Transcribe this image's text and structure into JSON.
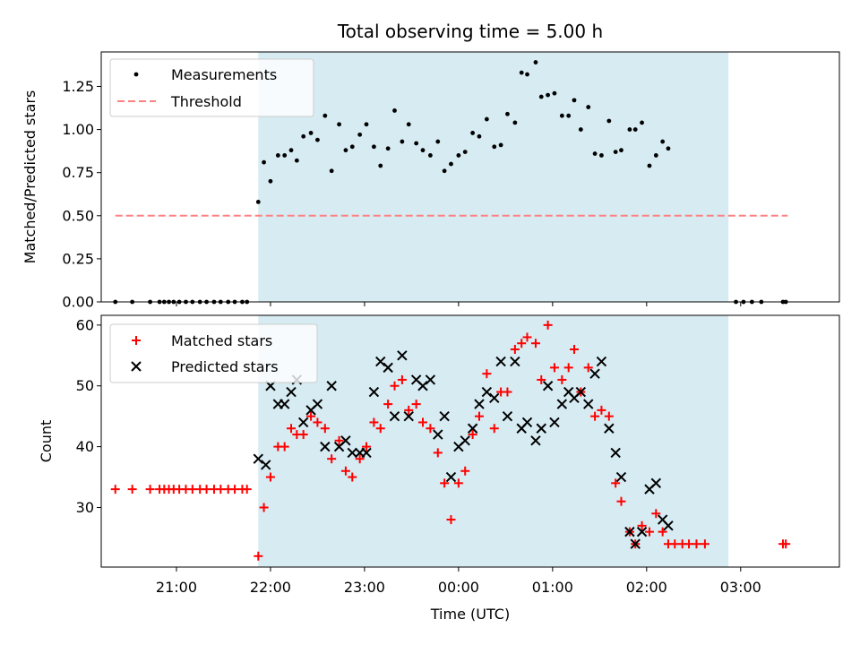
{
  "colors": {
    "shade": "#add8e6",
    "threshold": "#ff8080",
    "matched": "#ff0000",
    "predicted": "#000000",
    "measurement": "#000000"
  },
  "chart_data": [
    {
      "type": "scatter",
      "title": "Total observing time = 5.00 h",
      "xlabel": "",
      "ylabel": "Matched/Predicted stars",
      "x_unit": "UTC time (hours, values beyond 24 continue into the next day)",
      "xlim": [
        20.2,
        28.05
      ],
      "ylim": [
        0,
        1.45
      ],
      "yticks": [
        "0.00",
        "0.25",
        "0.50",
        "0.75",
        "1.00",
        "1.25"
      ],
      "observing_window": [
        21.87,
        26.87
      ],
      "legend": {
        "placement": "upper left",
        "entries": [
          "Measurements",
          "Threshold"
        ]
      },
      "series": [
        {
          "name": "Measurements",
          "marker": "dot",
          "points": [
            [
              20.35,
              0
            ],
            [
              20.53,
              0
            ],
            [
              20.72,
              0
            ],
            [
              20.82,
              0
            ],
            [
              20.87,
              0
            ],
            [
              20.92,
              0
            ],
            [
              20.97,
              0
            ],
            [
              21.03,
              0
            ],
            [
              21.1,
              0
            ],
            [
              21.17,
              0
            ],
            [
              21.25,
              0
            ],
            [
              21.32,
              0
            ],
            [
              21.4,
              0
            ],
            [
              21.47,
              0
            ],
            [
              21.55,
              0
            ],
            [
              21.62,
              0
            ],
            [
              21.7,
              0
            ],
            [
              21.75,
              0
            ],
            [
              21.87,
              0.58
            ],
            [
              21.93,
              0.81
            ],
            [
              22.0,
              0.7
            ],
            [
              22.08,
              0.85
            ],
            [
              22.15,
              0.85
            ],
            [
              22.22,
              0.88
            ],
            [
              22.28,
              0.82
            ],
            [
              22.35,
              0.96
            ],
            [
              22.43,
              0.98
            ],
            [
              22.5,
              0.94
            ],
            [
              22.58,
              1.08
            ],
            [
              22.65,
              0.76
            ],
            [
              22.73,
              1.03
            ],
            [
              22.8,
              0.88
            ],
            [
              22.87,
              0.9
            ],
            [
              22.95,
              0.97
            ],
            [
              23.02,
              1.03
            ],
            [
              23.1,
              0.9
            ],
            [
              23.17,
              0.79
            ],
            [
              23.25,
              0.89
            ],
            [
              23.32,
              1.11
            ],
            [
              23.4,
              0.93
            ],
            [
              23.47,
              1.03
            ],
            [
              23.55,
              0.92
            ],
            [
              23.62,
              0.88
            ],
            [
              23.7,
              0.85
            ],
            [
              23.78,
              0.93
            ],
            [
              23.85,
              0.76
            ],
            [
              23.92,
              0.8
            ],
            [
              24.0,
              0.85
            ],
            [
              24.07,
              0.87
            ],
            [
              24.15,
              0.98
            ],
            [
              24.22,
              0.96
            ],
            [
              24.3,
              1.06
            ],
            [
              24.38,
              0.9
            ],
            [
              24.45,
              0.91
            ],
            [
              24.52,
              1.09
            ],
            [
              24.6,
              1.04
            ],
            [
              24.67,
              1.33
            ],
            [
              24.73,
              1.32
            ],
            [
              24.82,
              1.39
            ],
            [
              24.88,
              1.19
            ],
            [
              24.95,
              1.2
            ],
            [
              25.02,
              1.21
            ],
            [
              25.1,
              1.08
            ],
            [
              25.17,
              1.08
            ],
            [
              25.23,
              1.17
            ],
            [
              25.3,
              1.0
            ],
            [
              25.38,
              1.13
            ],
            [
              25.45,
              0.86
            ],
            [
              25.52,
              0.85
            ],
            [
              25.6,
              1.05
            ],
            [
              25.67,
              0.87
            ],
            [
              25.73,
              0.88
            ],
            [
              25.82,
              1.0
            ],
            [
              25.88,
              1.0
            ],
            [
              25.95,
              1.04
            ],
            [
              26.03,
              0.79
            ],
            [
              26.1,
              0.85
            ],
            [
              26.17,
              0.93
            ],
            [
              26.23,
              0.89
            ],
            [
              26.95,
              0
            ],
            [
              27.03,
              0
            ],
            [
              27.12,
              0
            ],
            [
              27.22,
              0
            ],
            [
              27.45,
              0
            ],
            [
              27.48,
              0
            ]
          ]
        },
        {
          "name": "Threshold",
          "style": "dashed",
          "x": [
            20.35,
            27.5
          ],
          "y": [
            0.5,
            0.5
          ]
        }
      ]
    },
    {
      "type": "scatter",
      "title": "",
      "xlabel": "Time (UTC)",
      "ylabel": "Count",
      "x_unit": "UTC time (hours, values beyond 24 continue into the next day)",
      "xlim": [
        20.2,
        28.05
      ],
      "ylim": [
        20.2,
        61.6
      ],
      "xticks": [
        {
          "at": 21,
          "label": "21:00"
        },
        {
          "at": 22,
          "label": "22:00"
        },
        {
          "at": 23,
          "label": "23:00"
        },
        {
          "at": 24,
          "label": "00:00"
        },
        {
          "at": 25,
          "label": "01:00"
        },
        {
          "at": 26,
          "label": "02:00"
        },
        {
          "at": 27,
          "label": "03:00"
        }
      ],
      "yticks": [
        "30",
        "40",
        "50",
        "60"
      ],
      "observing_window": [
        21.87,
        26.87
      ],
      "legend": {
        "placement": "upper left",
        "entries": [
          "Matched stars",
          "Predicted stars"
        ]
      },
      "series": [
        {
          "name": "Matched stars",
          "marker": "plus",
          "points": [
            [
              20.35,
              33
            ],
            [
              20.53,
              33
            ],
            [
              20.72,
              33
            ],
            [
              20.82,
              33
            ],
            [
              20.87,
              33
            ],
            [
              20.92,
              33
            ],
            [
              20.97,
              33
            ],
            [
              21.03,
              33
            ],
            [
              21.1,
              33
            ],
            [
              21.17,
              33
            ],
            [
              21.25,
              33
            ],
            [
              21.32,
              33
            ],
            [
              21.4,
              33
            ],
            [
              21.47,
              33
            ],
            [
              21.55,
              33
            ],
            [
              21.62,
              33
            ],
            [
              21.7,
              33
            ],
            [
              21.75,
              33
            ],
            [
              21.87,
              22
            ],
            [
              21.93,
              30
            ],
            [
              22.0,
              35
            ],
            [
              22.08,
              40
            ],
            [
              22.15,
              40
            ],
            [
              22.22,
              43
            ],
            [
              22.28,
              42
            ],
            [
              22.35,
              42
            ],
            [
              22.43,
              45
            ],
            [
              22.5,
              44
            ],
            [
              22.58,
              43
            ],
            [
              22.65,
              38
            ],
            [
              22.73,
              41
            ],
            [
              22.8,
              36
            ],
            [
              22.87,
              35
            ],
            [
              22.95,
              38
            ],
            [
              23.02,
              40
            ],
            [
              23.1,
              44
            ],
            [
              23.17,
              43
            ],
            [
              23.25,
              47
            ],
            [
              23.32,
              50
            ],
            [
              23.4,
              51
            ],
            [
              23.47,
              46
            ],
            [
              23.55,
              47
            ],
            [
              23.62,
              44
            ],
            [
              23.7,
              43
            ],
            [
              23.78,
              39
            ],
            [
              23.85,
              34
            ],
            [
              23.92,
              28
            ],
            [
              24.0,
              34
            ],
            [
              24.07,
              36
            ],
            [
              24.15,
              42
            ],
            [
              24.22,
              45
            ],
            [
              24.3,
              52
            ],
            [
              24.38,
              43
            ],
            [
              24.45,
              49
            ],
            [
              24.52,
              49
            ],
            [
              24.6,
              56
            ],
            [
              24.67,
              57
            ],
            [
              24.73,
              58
            ],
            [
              24.82,
              57
            ],
            [
              24.88,
              51
            ],
            [
              24.95,
              60
            ],
            [
              25.02,
              53
            ],
            [
              25.1,
              51
            ],
            [
              25.17,
              53
            ],
            [
              25.23,
              56
            ],
            [
              25.3,
              49
            ],
            [
              25.38,
              53
            ],
            [
              25.45,
              45
            ],
            [
              25.52,
              46
            ],
            [
              25.6,
              45
            ],
            [
              25.67,
              34
            ],
            [
              25.73,
              31
            ],
            [
              25.82,
              26
            ],
            [
              25.88,
              24
            ],
            [
              25.95,
              27
            ],
            [
              26.03,
              26
            ],
            [
              26.1,
              29
            ],
            [
              26.17,
              26
            ],
            [
              26.23,
              24
            ],
            [
              26.3,
              24
            ],
            [
              26.38,
              24
            ],
            [
              26.45,
              24
            ],
            [
              26.53,
              24
            ],
            [
              26.62,
              24
            ],
            [
              27.45,
              24
            ],
            [
              27.48,
              24
            ]
          ]
        },
        {
          "name": "Predicted stars",
          "marker": "x",
          "points": [
            [
              21.87,
              38
            ],
            [
              21.95,
              37
            ],
            [
              22.0,
              50
            ],
            [
              22.08,
              47
            ],
            [
              22.15,
              47
            ],
            [
              22.22,
              49
            ],
            [
              22.28,
              51
            ],
            [
              22.35,
              44
            ],
            [
              22.43,
              46
            ],
            [
              22.5,
              47
            ],
            [
              22.58,
              40
            ],
            [
              22.65,
              50
            ],
            [
              22.73,
              40
            ],
            [
              22.8,
              41
            ],
            [
              22.87,
              39
            ],
            [
              22.95,
              39
            ],
            [
              23.02,
              39
            ],
            [
              23.1,
              49
            ],
            [
              23.17,
              54
            ],
            [
              23.25,
              53
            ],
            [
              23.32,
              45
            ],
            [
              23.4,
              55
            ],
            [
              23.47,
              45
            ],
            [
              23.55,
              51
            ],
            [
              23.62,
              50
            ],
            [
              23.7,
              51
            ],
            [
              23.78,
              42
            ],
            [
              23.85,
              45
            ],
            [
              23.92,
              35
            ],
            [
              24.0,
              40
            ],
            [
              24.07,
              41
            ],
            [
              24.15,
              43
            ],
            [
              24.22,
              47
            ],
            [
              24.3,
              49
            ],
            [
              24.38,
              48
            ],
            [
              24.45,
              54
            ],
            [
              24.52,
              45
            ],
            [
              24.6,
              54
            ],
            [
              24.67,
              43
            ],
            [
              24.73,
              44
            ],
            [
              24.82,
              41
            ],
            [
              24.88,
              43
            ],
            [
              24.95,
              50
            ],
            [
              25.02,
              44
            ],
            [
              25.1,
              47
            ],
            [
              25.17,
              49
            ],
            [
              25.23,
              48
            ],
            [
              25.3,
              49
            ],
            [
              25.38,
              47
            ],
            [
              25.45,
              52
            ],
            [
              25.52,
              54
            ],
            [
              25.6,
              43
            ],
            [
              25.67,
              39
            ],
            [
              25.73,
              35
            ],
            [
              25.82,
              26
            ],
            [
              25.88,
              24
            ],
            [
              25.95,
              26
            ],
            [
              26.03,
              33
            ],
            [
              26.1,
              34
            ],
            [
              26.17,
              28
            ],
            [
              26.23,
              27
            ]
          ]
        }
      ]
    }
  ]
}
